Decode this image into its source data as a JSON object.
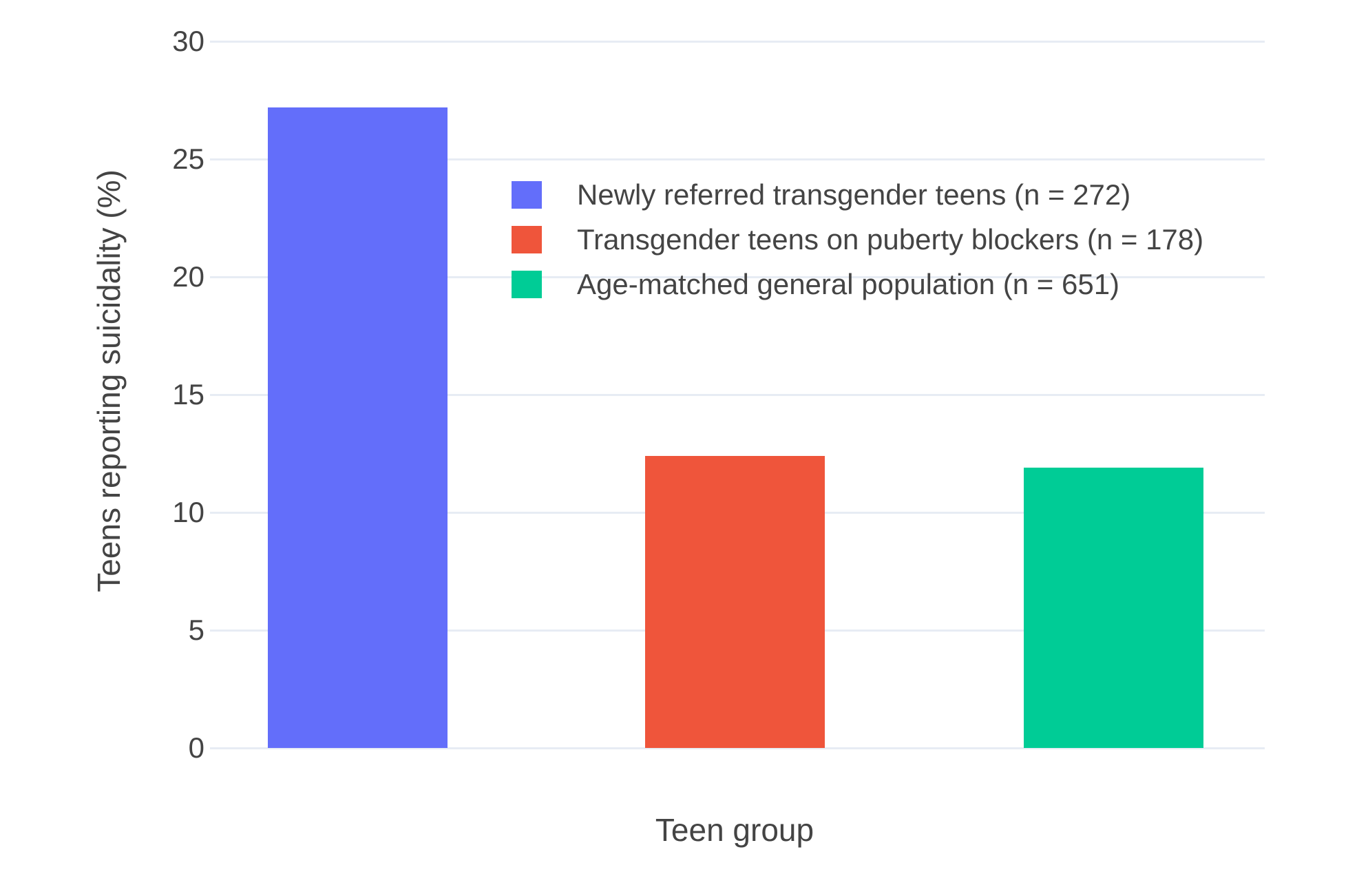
{
  "chart_data": {
    "type": "bar",
    "title": "",
    "xlabel": "Teen group",
    "ylabel": "Teens reporting suicidality (%)",
    "ylim": [
      0,
      30
    ],
    "yticks": [
      0,
      5,
      10,
      15,
      20,
      25,
      30
    ],
    "grid": true,
    "legend_position": "inside top, over plot area",
    "categories": [
      "Newly referred transgender teens (n = 272)",
      "Transgender teens on puberty blockers (n = 178)",
      "Age-matched general population (n = 651)"
    ],
    "series": [
      {
        "name": "Newly referred transgender teens (n = 272)",
        "value": 27.2,
        "color": "#636EFA"
      },
      {
        "name": "Transgender teens on puberty blockers (n = 178)",
        "value": 12.4,
        "color": "#EF553B"
      },
      {
        "name": "Age-matched general population (n = 651)",
        "value": 11.9,
        "color": "#00CC96"
      }
    ]
  },
  "colors": {
    "grid": "#E7ECF4",
    "text": "#444444",
    "background": "#FFFFFF"
  }
}
